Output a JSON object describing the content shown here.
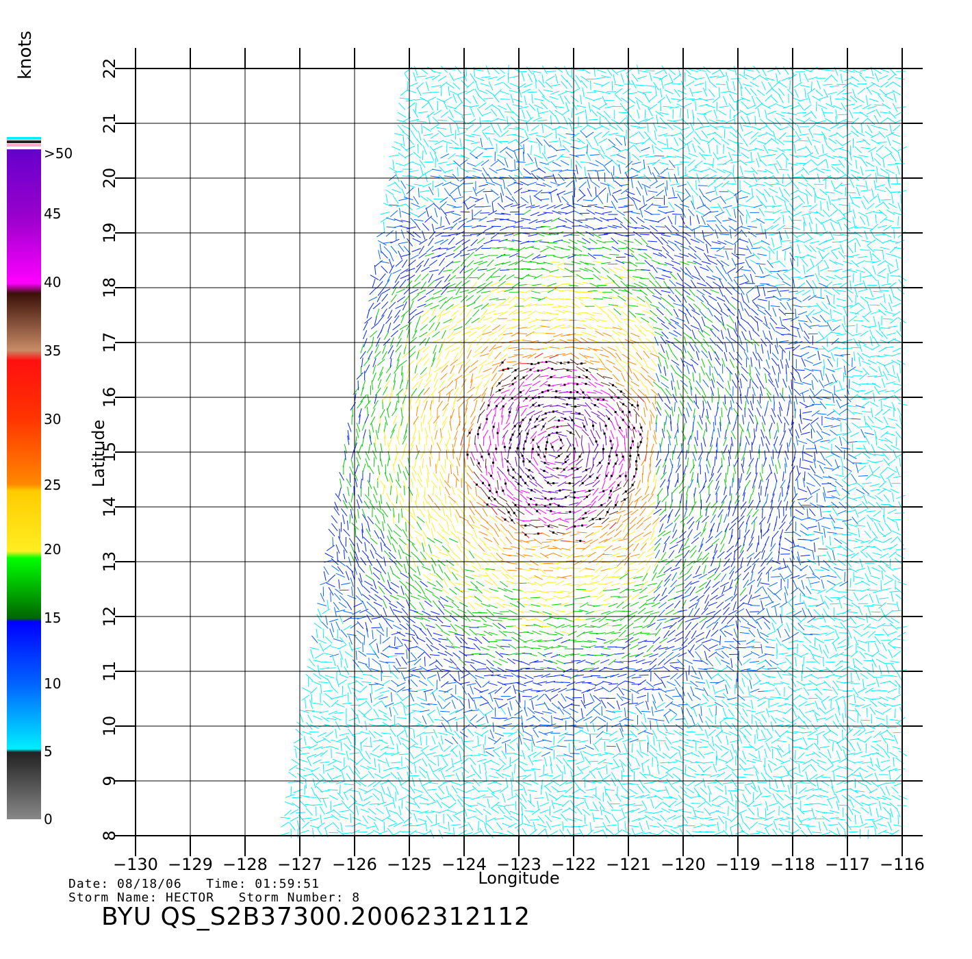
{
  "map": {
    "xlabel": "Longitude",
    "ylabel": "Latitude",
    "lon_range": [
      -130,
      -116
    ],
    "lat_range": [
      8,
      22
    ],
    "lon_ticks": [
      "-130",
      "-129",
      "-128",
      "-127",
      "-126",
      "-125",
      "-124",
      "-123",
      "-122",
      "-121",
      "-120",
      "-119",
      "-118",
      "-117",
      "-116"
    ],
    "lat_ticks": [
      "8",
      "9",
      "10",
      "11",
      "12",
      "13",
      "14",
      "15",
      "16",
      "17",
      "18",
      "19",
      "20",
      "21",
      "22"
    ],
    "grid": true,
    "storm_center": {
      "lon": -122.3,
      "lat": 15.1
    }
  },
  "colorbar": {
    "units": "knots",
    "labels": [
      ">50",
      "45",
      "40",
      "35",
      "30",
      "25",
      "20",
      "15",
      "10",
      "5",
      "0"
    ],
    "colors": {
      "purple": "#6600cc",
      "magenta": "#ff00ff",
      "brown": "#5a2a1a",
      "tan": "#c88b66",
      "red": "#ff1010",
      "orange": "#ff8800",
      "yellow": "#ffee22",
      "green": "#00cc00",
      "darkgreen": "#006600",
      "blue": "#0022ff",
      "cyan": "#00eeff",
      "gray": "#555555"
    }
  },
  "footer": {
    "line1": "Date: 08/18/06   Time: 01:59:51",
    "line2": "Storm Name: HECTOR   Storm Number: 8",
    "title": "BYU QS_S2B37300.20062312112"
  }
}
